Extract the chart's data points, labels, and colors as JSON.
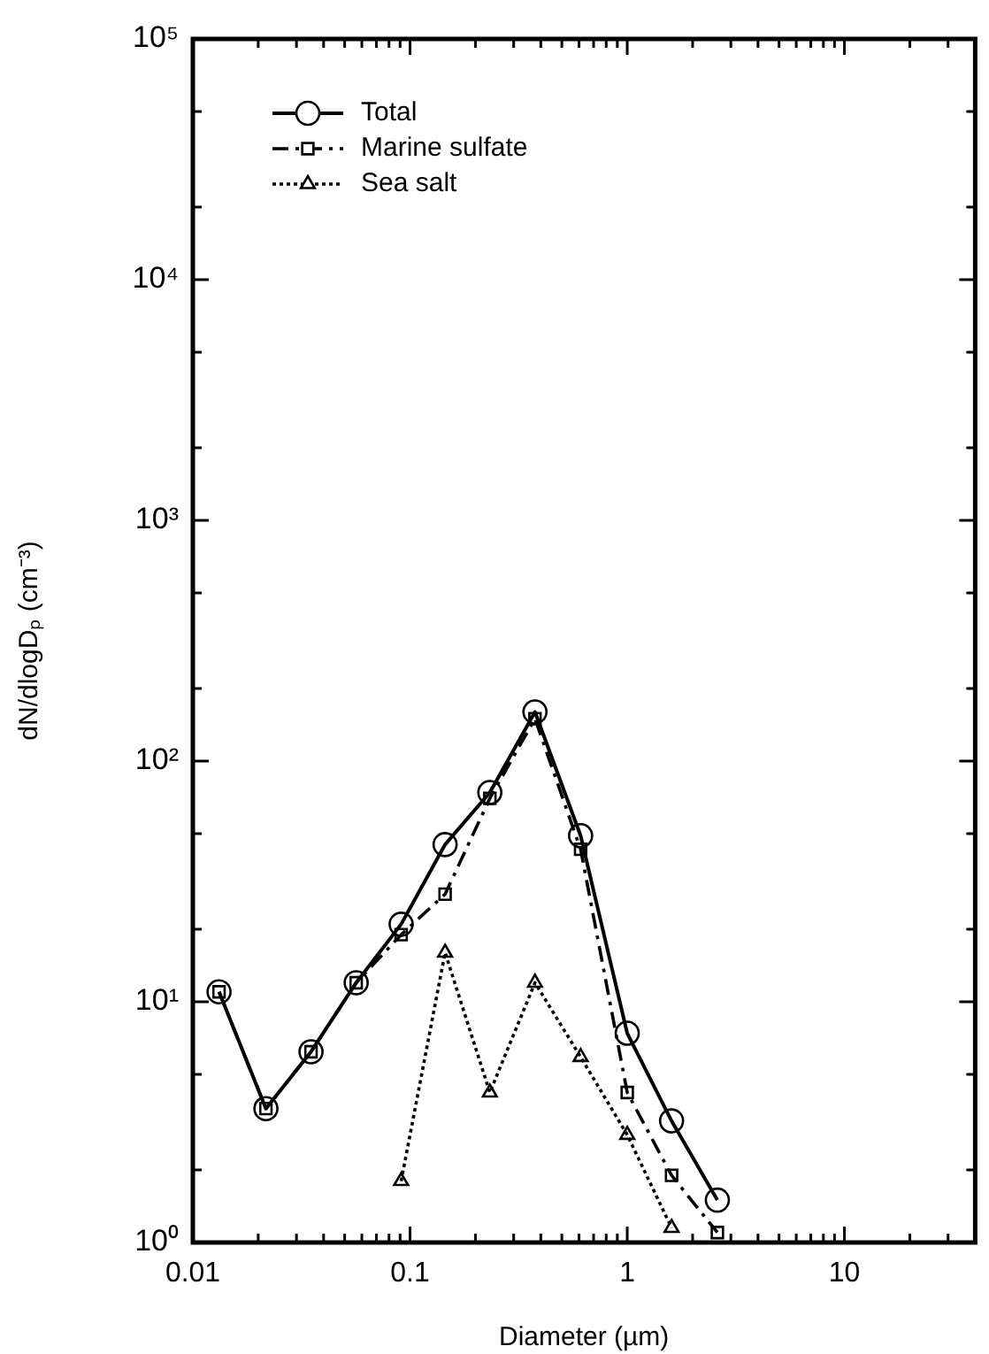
{
  "chart_data": {
    "type": "line",
    "xlabel": "Diameter (µm)",
    "ylabel": "dN/dlogDₚ (cm⁻³)",
    "log": "xy",
    "legend": "top left",
    "grid": false,
    "xlim": [
      0.01,
      40
    ],
    "ylim": [
      1,
      100000
    ],
    "xticks": [
      {
        "value": 0.01,
        "label": "0.01"
      },
      {
        "value": 0.02,
        "label": null
      },
      {
        "value": 0.03,
        "label": null
      },
      {
        "value": 0.04,
        "label": null
      },
      {
        "value": 0.05,
        "label": null
      },
      {
        "value": 0.06,
        "label": null
      },
      {
        "value": 0.07,
        "label": null
      },
      {
        "value": 0.08,
        "label": null
      },
      {
        "value": 0.09,
        "label": null
      },
      {
        "value": 0.1,
        "label": "0.1"
      },
      {
        "value": 0.2,
        "label": null
      },
      {
        "value": 0.3,
        "label": null
      },
      {
        "value": 0.4,
        "label": null
      },
      {
        "value": 0.5,
        "label": null
      },
      {
        "value": 0.6,
        "label": null
      },
      {
        "value": 0.7,
        "label": null
      },
      {
        "value": 0.8,
        "label": null
      },
      {
        "value": 0.9,
        "label": null
      },
      {
        "value": 1,
        "label": "1"
      },
      {
        "value": 2,
        "label": null
      },
      {
        "value": 3,
        "label": null
      },
      {
        "value": 4,
        "label": null
      },
      {
        "value": 5,
        "label": null
      },
      {
        "value": 6,
        "label": null
      },
      {
        "value": 7,
        "label": null
      },
      {
        "value": 8,
        "label": null
      },
      {
        "value": 9,
        "label": null
      },
      {
        "value": 10,
        "label": "10"
      },
      {
        "value": 20,
        "label": null
      },
      {
        "value": 30,
        "label": null
      }
    ],
    "yticks": [
      {
        "value": 1,
        "label": "10⁰"
      },
      {
        "value": 2,
        "label": null
      },
      {
        "value": 5,
        "label": null
      },
      {
        "value": 10,
        "label": "10¹"
      },
      {
        "value": 20,
        "label": null
      },
      {
        "value": 50,
        "label": null
      },
      {
        "value": 100,
        "label": "10²"
      },
      {
        "value": 200,
        "label": null
      },
      {
        "value": 500,
        "label": null
      },
      {
        "value": 1000,
        "label": "10³"
      },
      {
        "value": 2000,
        "label": null
      },
      {
        "value": 5000,
        "label": null
      },
      {
        "value": 10000,
        "label": "10⁴"
      },
      {
        "value": 20000,
        "label": null
      },
      {
        "value": 50000,
        "label": null
      },
      {
        "value": 100000,
        "label": "10⁵"
      }
    ],
    "series": [
      {
        "name": "Total",
        "color": "#000000",
        "marker": "circle",
        "line_style": "solid",
        "x": [
          0.0132,
          0.0217,
          0.035,
          0.0565,
          0.091,
          0.145,
          0.233,
          0.376,
          0.61,
          1.0,
          1.6,
          2.6
        ],
        "values": [
          11,
          3.6,
          6.2,
          12,
          21,
          45,
          74,
          160,
          49,
          7.4,
          3.2,
          1.5
        ]
      },
      {
        "name": "Marine sulfate",
        "color": "#000000",
        "marker": "square",
        "line_style": "dashed",
        "x": [
          0.0132,
          0.0217,
          0.035,
          0.0565,
          0.091,
          0.145,
          0.233,
          0.376,
          0.61,
          1.0,
          1.6,
          2.6
        ],
        "values": [
          11,
          3.6,
          6.2,
          12,
          19,
          28,
          70,
          150,
          43,
          4.2,
          1.9,
          1.1
        ]
      },
      {
        "name": "Sea salt",
        "color": "#000000",
        "marker": "triangle",
        "line_style": "dotted",
        "x": [
          0.091,
          0.145,
          0.233,
          0.376,
          0.61,
          1.0,
          1.6
        ],
        "values": [
          1.8,
          16,
          4.2,
          12,
          5.9,
          2.8,
          1.15
        ]
      }
    ]
  }
}
